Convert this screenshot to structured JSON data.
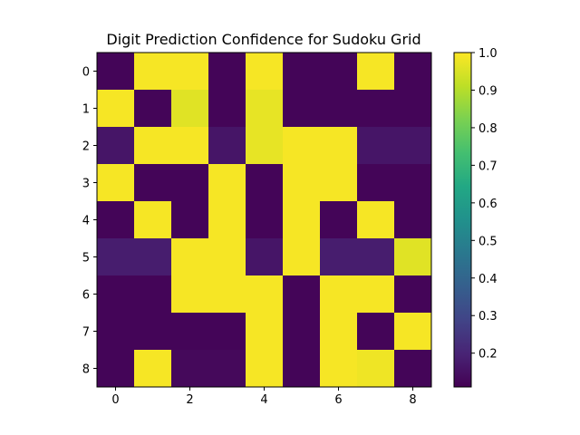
{
  "chart_data": {
    "type": "heatmap",
    "title": "Digit Prediction Confidence for Sudoku Grid",
    "xlabel": "",
    "ylabel": "",
    "xticks": [
      0,
      2,
      4,
      6,
      8
    ],
    "yticks": [
      0,
      1,
      2,
      3,
      4,
      5,
      6,
      7,
      8
    ],
    "colormap": "viridis",
    "vmin": 0.11,
    "vmax": 1.0,
    "colorbar_ticks": [
      "0.2",
      "0.3",
      "0.4",
      "0.5",
      "0.6",
      "0.7",
      "0.8",
      "0.9",
      "1.0"
    ],
    "colorbar_tick_values": [
      0.2,
      0.3,
      0.4,
      0.5,
      0.6,
      0.7,
      0.8,
      0.9,
      1.0
    ],
    "matrix": [
      [
        0.12,
        0.99,
        0.99,
        0.12,
        0.99,
        0.12,
        0.12,
        0.99,
        0.12
      ],
      [
        0.99,
        0.12,
        0.96,
        0.12,
        0.97,
        0.12,
        0.12,
        0.12,
        0.12
      ],
      [
        0.16,
        0.99,
        0.99,
        0.16,
        0.97,
        0.99,
        0.99,
        0.16,
        0.16
      ],
      [
        0.99,
        0.12,
        0.12,
        0.99,
        0.12,
        0.99,
        0.99,
        0.12,
        0.12
      ],
      [
        0.12,
        0.99,
        0.12,
        0.99,
        0.12,
        0.99,
        0.12,
        0.99,
        0.12
      ],
      [
        0.18,
        0.18,
        0.99,
        0.99,
        0.16,
        0.99,
        0.18,
        0.18,
        0.96
      ],
      [
        0.12,
        0.12,
        0.99,
        0.99,
        0.99,
        0.12,
        0.99,
        0.99,
        0.12
      ],
      [
        0.12,
        0.12,
        0.12,
        0.12,
        0.99,
        0.12,
        0.99,
        0.12,
        0.99
      ],
      [
        0.12,
        0.99,
        0.13,
        0.13,
        0.99,
        0.12,
        0.99,
        0.98,
        0.12
      ]
    ]
  }
}
